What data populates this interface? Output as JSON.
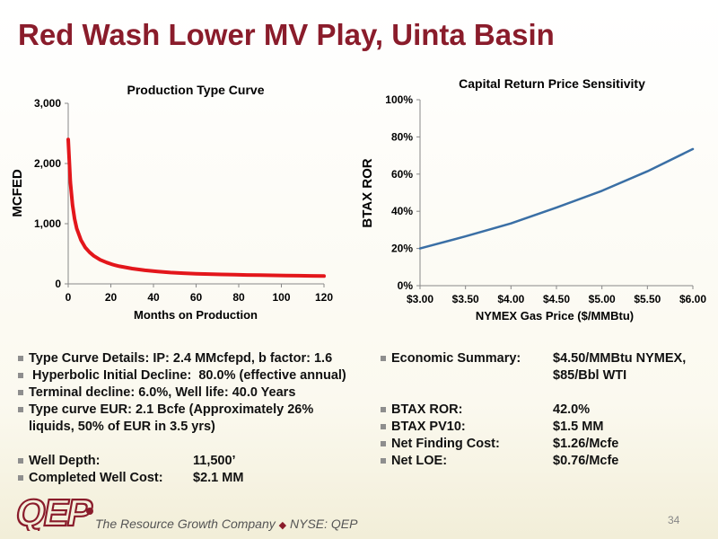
{
  "title": "Red Wash Lower MV Play, Uinta Basin",
  "chart_data": [
    {
      "type": "line",
      "title": "Production Type Curve",
      "xlabel": "Months on Production",
      "ylabel": "MCFED",
      "xlim": [
        0,
        120
      ],
      "ylim": [
        0,
        3000
      ],
      "x_ticks": [
        0,
        20,
        40,
        60,
        80,
        100,
        120
      ],
      "y_ticks": [
        0,
        1000,
        2000,
        3000
      ],
      "x_tick_labels": [
        "0",
        "20",
        "40",
        "60",
        "80",
        "100",
        "120"
      ],
      "y_tick_labels": [
        "0",
        "1,000",
        "2,000",
        "3,000"
      ],
      "grid": false,
      "legend": "none",
      "series": [
        {
          "color": "#e3161b",
          "x": [
            0,
            1,
            2,
            3,
            4,
            6,
            8,
            10,
            12,
            15,
            18,
            21,
            24,
            30,
            36,
            42,
            48,
            54,
            60,
            66,
            72,
            78,
            84,
            90,
            96,
            102,
            108,
            114,
            120
          ],
          "y": [
            2400,
            1690,
            1310,
            1080,
            920,
            725,
            605,
            525,
            465,
            400,
            355,
            320,
            293,
            253,
            225,
            204,
            188,
            177,
            168,
            162,
            157,
            152,
            148,
            145,
            142,
            139,
            136,
            133,
            130
          ]
        }
      ]
    },
    {
      "type": "line",
      "title": "Capital Return Price Sensitivity",
      "xlabel": "NYMEX Gas Price ($/MMBtu)",
      "ylabel": "BTAX ROR",
      "xlim": [
        3.0,
        6.0
      ],
      "ylim": [
        0,
        100
      ],
      "x_ticks": [
        3.0,
        3.5,
        4.0,
        4.5,
        5.0,
        5.5,
        6.0
      ],
      "y_ticks": [
        0,
        20,
        40,
        60,
        80,
        100
      ],
      "x_tick_labels": [
        "$3.00",
        "$3.50",
        "$4.00",
        "$4.50",
        "$5.00",
        "$5.50",
        "$6.00"
      ],
      "y_tick_labels": [
        "0%",
        "20%",
        "40%",
        "60%",
        "80%",
        "100%"
      ],
      "grid": false,
      "legend": "none",
      "series": [
        {
          "color": "#3a6fa5",
          "x": [
            3.0,
            3.5,
            4.0,
            4.5,
            5.0,
            5.5,
            6.0
          ],
          "y": [
            20,
            26.5,
            33.5,
            42,
            51,
            61.5,
            73.5
          ]
        }
      ]
    }
  ],
  "left_bullets": [
    "Type Curve Details: IP:  2.4 MMcfepd, b factor: 1.6",
    " Hyperbolic Initial Decline:  80.0% (effective annual)",
    "Terminal decline:  6.0%, Well life:  40.0 Years",
    "Type curve EUR:  2.1 Bcfe (Approximately 26%",
    "liquids, 50% of EUR in 3.5 yrs)"
  ],
  "well_rows": [
    {
      "label": "Well Depth:",
      "value": "11,500’"
    },
    {
      "label": "Completed Well Cost:",
      "value": "$2.1 MM"
    }
  ],
  "economic_summary": {
    "label": "Economic Summary:",
    "value_line1": "$4.50/MMBtu NYMEX,",
    "value_line2": "$85/Bbl WTI"
  },
  "economic_rows": [
    {
      "label": "BTAX ROR:",
      "value": "42.0%"
    },
    {
      "label": "BTAX PV10:",
      "value": "$1.5 MM"
    },
    {
      "label": "Net Finding Cost:",
      "value": "$1.26/Mcfe"
    },
    {
      "label": "Net LOE:",
      "value": "$0.76/Mcfe"
    }
  ],
  "footer": {
    "logo_text": "QEP",
    "tagline_left": "The Resource Growth Company",
    "tagline_right": "NYSE: QEP",
    "page_number": "34"
  },
  "colors": {
    "title": "#8a1c2b",
    "logo": "#8a1c2b",
    "production_curve": "#e3161b",
    "ror_curve": "#3a6fa5"
  }
}
